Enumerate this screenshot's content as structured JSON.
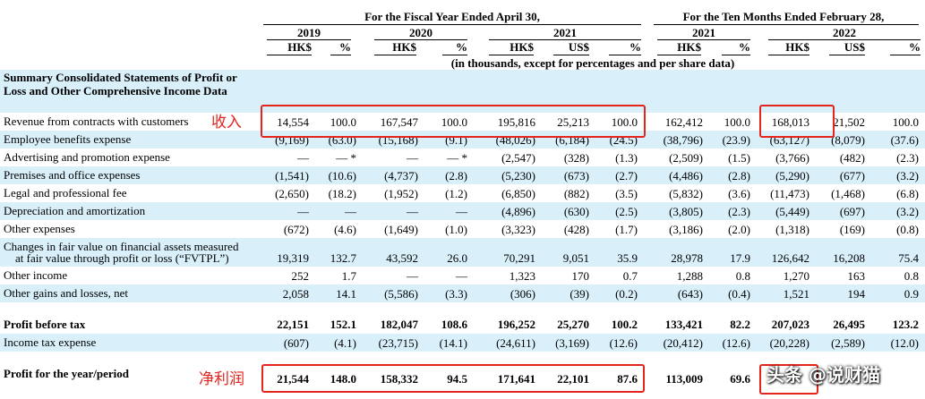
{
  "header": {
    "fiscal_title": "For the Fiscal Year Ended April 30,",
    "ten_months_title": "For the Ten Months Ended February 28,",
    "note": "(in thousands, except for percentages and per share data)",
    "years": [
      "2019",
      "2020",
      "2021",
      "2021",
      "2022"
    ],
    "units": [
      "HK$",
      "%",
      "HK$",
      "%",
      "HK$",
      "US$",
      "%",
      "HK$",
      "%",
      "HK$",
      "US$",
      "%"
    ]
  },
  "section_label": "Summary Consolidated Statements of Profit or Loss and Other Comprehensive Income Data",
  "rows": [
    {
      "label": "Revenue from contracts with customers",
      "values": [
        "14,554",
        "100.0",
        "167,547",
        "100.0",
        "195,816",
        "25,213",
        "100.0",
        "162,412",
        "100.0",
        "168,013",
        "21,502",
        "100.0"
      ]
    },
    {
      "label": "Employee benefits expense",
      "values": [
        "(9,169)",
        "(63.0)",
        "(15,168)",
        "(9.1)",
        "(48,026)",
        "(6,184)",
        "(24.5)",
        "(38,796)",
        "(23.9)",
        "(63,127)",
        "(8,079)",
        "(37.6)"
      ]
    },
    {
      "label": "Advertising and promotion expense",
      "values": [
        "—",
        "—  *",
        "—",
        "—  *",
        "(2,547)",
        "(328)",
        "(1.3)",
        "(2,509)",
        "(1.5)",
        "(3,766)",
        "(482)",
        "(2.3)"
      ]
    },
    {
      "label": "Premises and office expenses",
      "values": [
        "(1,541)",
        "(10.6)",
        "(4,737)",
        "(2.8)",
        "(5,230)",
        "(673)",
        "(2.7)",
        "(4,486)",
        "(2.8)",
        "(5,290)",
        "(677)",
        "(3.2)"
      ]
    },
    {
      "label": "Legal and professional fee",
      "values": [
        "(2,650)",
        "(18.2)",
        "(1,952)",
        "(1.2)",
        "(6,850)",
        "(882)",
        "(3.5)",
        "(5,832)",
        "(3.6)",
        "(11,473)",
        "(1,468)",
        "(6.8)"
      ]
    },
    {
      "label": "Depreciation and amortization",
      "values": [
        "—",
        "—",
        "—",
        "—",
        "(4,896)",
        "(630)",
        "(2.5)",
        "(3,805)",
        "(2.3)",
        "(5,449)",
        "(697)",
        "(3.2)"
      ]
    },
    {
      "label": "Other expenses",
      "values": [
        "(672)",
        "(4.6)",
        "(1,649)",
        "(1.0)",
        "(3,323)",
        "(428)",
        "(1.7)",
        "(3,186)",
        "(2.0)",
        "(1,318)",
        "(169)",
        "(0.8)"
      ]
    },
    {
      "label": "Changes in fair value on financial assets measured",
      "label2": "at fair value through profit or loss (“FVTPL”)",
      "values": [
        "19,319",
        "132.7",
        "43,592",
        "26.0",
        "70,291",
        "9,051",
        "35.9",
        "28,978",
        "17.9",
        "126,642",
        "16,208",
        "75.4"
      ]
    },
    {
      "label": "Other income",
      "values": [
        "252",
        "1.7",
        "—",
        "—",
        "1,323",
        "170",
        "0.7",
        "1,288",
        "0.8",
        "1,270",
        "163",
        "0.8"
      ]
    },
    {
      "label": "Other gains and losses, net",
      "values": [
        "2,058",
        "14.1",
        "(5,586)",
        "(3.3)",
        "(306)",
        "(39)",
        "(0.2)",
        "(643)",
        "(0.4)",
        "1,521",
        "194",
        "0.9"
      ]
    },
    {
      "label": "Profit before tax",
      "values": [
        "22,151",
        "152.1",
        "182,047",
        "108.6",
        "196,252",
        "25,270",
        "100.2",
        "133,421",
        "82.2",
        "207,023",
        "26,495",
        "123.2"
      ]
    },
    {
      "label": "Income tax expense",
      "values": [
        "(607)",
        "(4.1)",
        "(23,715)",
        "(14.1)",
        "(24,611)",
        "(3,169)",
        "(12.6)",
        "(20,412)",
        "(12.6)",
        "(20,228)",
        "(2,589)",
        "(12.0)"
      ]
    },
    {
      "label": "Profit for the year/period",
      "values": [
        "21,544",
        "148.0",
        "158,332",
        "94.5",
        "171,641",
        "22,101",
        "87.6",
        "113,009",
        "69.6",
        "",
        "",
        ""
      ]
    }
  ],
  "annotations": {
    "revenue": "收入",
    "net_profit": "净利润"
  },
  "watermark": "头条 @说财猫",
  "colors": {
    "highlight": "#e5241c",
    "row_shade": "#d9f0fb"
  }
}
